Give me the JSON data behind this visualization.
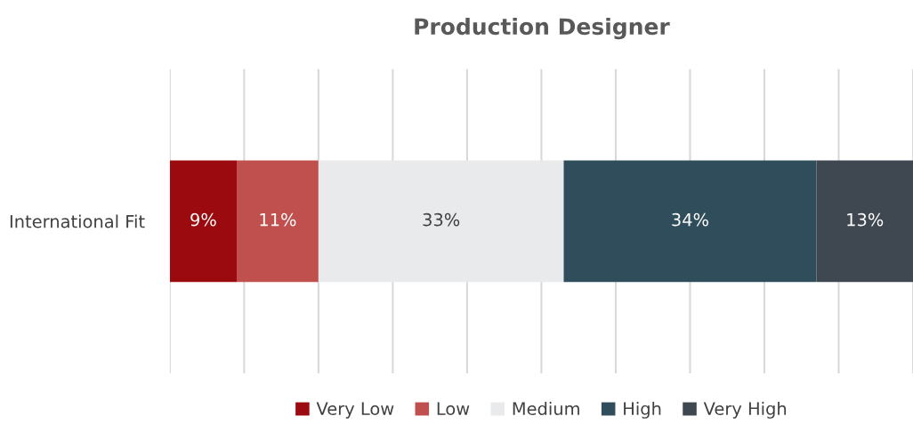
{
  "chart_data": {
    "type": "bar",
    "orientation": "horizontal",
    "stacked": true,
    "title": "Production Designer",
    "categories": [
      "International Fit"
    ],
    "series": [
      {
        "name": "Very Low",
        "color": "#9b0a0e",
        "values": [
          9
        ],
        "value_labels": [
          "9%"
        ]
      },
      {
        "name": "Low",
        "color": "#c0504d",
        "values": [
          11
        ],
        "value_labels": [
          "11%"
        ]
      },
      {
        "name": "Medium",
        "color": "#e9eaec",
        "values": [
          33
        ],
        "value_labels": [
          "33%"
        ]
      },
      {
        "name": "High",
        "color": "#304d5b",
        "values": [
          34
        ],
        "value_labels": [
          "34%"
        ]
      },
      {
        "name": "Very High",
        "color": "#3f4750",
        "values": [
          13
        ],
        "value_labels": [
          "13%"
        ]
      }
    ],
    "xlim": [
      0,
      100
    ],
    "xticks": [
      {
        "value": 0,
        "label": null
      },
      {
        "value": 10,
        "label": null
      },
      {
        "value": 20,
        "label": null
      },
      {
        "value": 30,
        "label": null
      },
      {
        "value": 40,
        "label": null
      },
      {
        "value": 50,
        "label": null
      },
      {
        "value": 60,
        "label": null
      },
      {
        "value": 70,
        "label": null
      },
      {
        "value": 80,
        "label": null
      },
      {
        "value": 90,
        "label": null
      },
      {
        "value": 100,
        "label": null
      }
    ],
    "tick_labels": "y",
    "grid": "x",
    "legend": "bottom"
  }
}
